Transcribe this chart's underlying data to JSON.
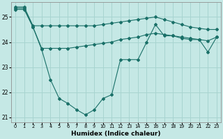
{
  "xlabel": "Humidex (Indice chaleur)",
  "background_color": "#c5e8e5",
  "grid_color": "#a8d4d0",
  "line_color": "#1a7068",
  "x": [
    0,
    1,
    2,
    3,
    4,
    5,
    6,
    7,
    8,
    9,
    10,
    11,
    12,
    13,
    14,
    15,
    16,
    17,
    18,
    19,
    20,
    21,
    22,
    23
  ],
  "line_dip": [
    25.3,
    25.3,
    24.6,
    23.7,
    22.5,
    21.75,
    21.55,
    21.3,
    21.1,
    21.3,
    21.75,
    21.9,
    23.3,
    23.3,
    23.3,
    24.0,
    24.7,
    24.25,
    24.25,
    24.15,
    24.1,
    24.1,
    23.6,
    24.2
  ],
  "line_mid": [
    25.35,
    25.35,
    24.6,
    23.75,
    23.75,
    23.75,
    23.75,
    23.8,
    23.85,
    23.9,
    23.95,
    24.0,
    24.1,
    24.15,
    24.2,
    24.3,
    24.35,
    24.3,
    24.25,
    24.2,
    24.15,
    24.1,
    24.05,
    24.2
  ],
  "line_top": [
    25.4,
    25.4,
    24.65,
    24.65,
    24.65,
    24.65,
    24.65,
    24.65,
    24.65,
    24.65,
    24.7,
    24.75,
    24.8,
    24.85,
    24.9,
    24.95,
    25.0,
    24.9,
    24.8,
    24.7,
    24.6,
    24.55,
    24.5,
    24.5
  ],
  "ylim": [
    20.8,
    25.6
  ],
  "yticks": [
    21,
    22,
    23,
    24,
    25
  ]
}
